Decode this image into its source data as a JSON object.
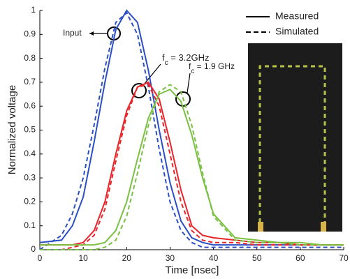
{
  "chart_data": {
    "type": "line",
    "xlabel": "Time [nsec]",
    "ylabel": "Normalized voltage",
    "x": [
      0,
      5,
      7.5,
      10,
      12.5,
      15,
      17.5,
      20,
      22.5,
      25,
      27.5,
      30,
      32.5,
      35,
      37.5,
      40,
      45,
      50,
      55,
      60,
      65,
      70
    ],
    "xlim": [
      0,
      70
    ],
    "xticks": [
      0,
      10,
      20,
      30,
      40,
      50,
      60,
      70
    ],
    "ylim": [
      0,
      1
    ],
    "yticks": [
      0,
      0.1,
      0.2,
      0.3,
      0.4,
      0.5,
      0.6,
      0.7,
      0.8,
      0.9,
      1
    ],
    "legend": [
      {
        "label": "Measured",
        "dashed": false
      },
      {
        "label": "Simulated",
        "dashed": true
      }
    ],
    "series": [
      {
        "color": "#2b4fc2",
        "dashed": false,
        "values": [
          0.03,
          0.04,
          0.1,
          0.22,
          0.45,
          0.7,
          0.92,
          1.0,
          0.95,
          0.75,
          0.5,
          0.28,
          0.12,
          0.05,
          0.03,
          0.02,
          0.02,
          0.02,
          0.02,
          0.02,
          0.02,
          0.02
        ]
      },
      {
        "color": "#2b4fc2",
        "dashed": true,
        "values": [
          0.0,
          0.06,
          0.15,
          0.3,
          0.52,
          0.76,
          0.95,
          0.99,
          0.9,
          0.68,
          0.42,
          0.2,
          0.08,
          0.03,
          0.01,
          0.01,
          0.01,
          0.01,
          0.01,
          0.01,
          0.01,
          0.01
        ]
      },
      {
        "color": "#e8252a",
        "dashed": false,
        "values": [
          0.02,
          0.02,
          0.02,
          0.03,
          0.08,
          0.2,
          0.4,
          0.58,
          0.68,
          0.7,
          0.63,
          0.45,
          0.25,
          0.1,
          0.06,
          0.05,
          0.04,
          0.03,
          0.03,
          0.02,
          0.02,
          0.02
        ]
      },
      {
        "color": "#e8252a",
        "dashed": true,
        "values": [
          0.0,
          0.0,
          0.01,
          0.02,
          0.06,
          0.17,
          0.37,
          0.56,
          0.68,
          0.69,
          0.6,
          0.4,
          0.2,
          0.08,
          0.04,
          0.03,
          0.03,
          0.02,
          0.02,
          0.02,
          0.02,
          0.02
        ]
      },
      {
        "color": "#7ac143",
        "dashed": false,
        "values": [
          0.02,
          0.02,
          0.02,
          0.02,
          0.02,
          0.03,
          0.08,
          0.2,
          0.38,
          0.55,
          0.65,
          0.67,
          0.62,
          0.48,
          0.3,
          0.15,
          0.05,
          0.04,
          0.03,
          0.03,
          0.02,
          0.02
        ]
      },
      {
        "color": "#7ac143",
        "dashed": true,
        "values": [
          0.0,
          0.0,
          0.0,
          0.0,
          0.0,
          0.01,
          0.04,
          0.14,
          0.32,
          0.52,
          0.66,
          0.69,
          0.66,
          0.52,
          0.32,
          0.14,
          0.04,
          0.03,
          0.03,
          0.02,
          0.02,
          0.02
        ]
      }
    ],
    "annotations": [
      {
        "text": "Input"
      },
      {
        "text": "f",
        "sub": "c",
        "rest": " = 3.2GHz"
      },
      {
        "text": "f",
        "sub": "c",
        "rest": " = 1.9 GHz"
      }
    ]
  }
}
